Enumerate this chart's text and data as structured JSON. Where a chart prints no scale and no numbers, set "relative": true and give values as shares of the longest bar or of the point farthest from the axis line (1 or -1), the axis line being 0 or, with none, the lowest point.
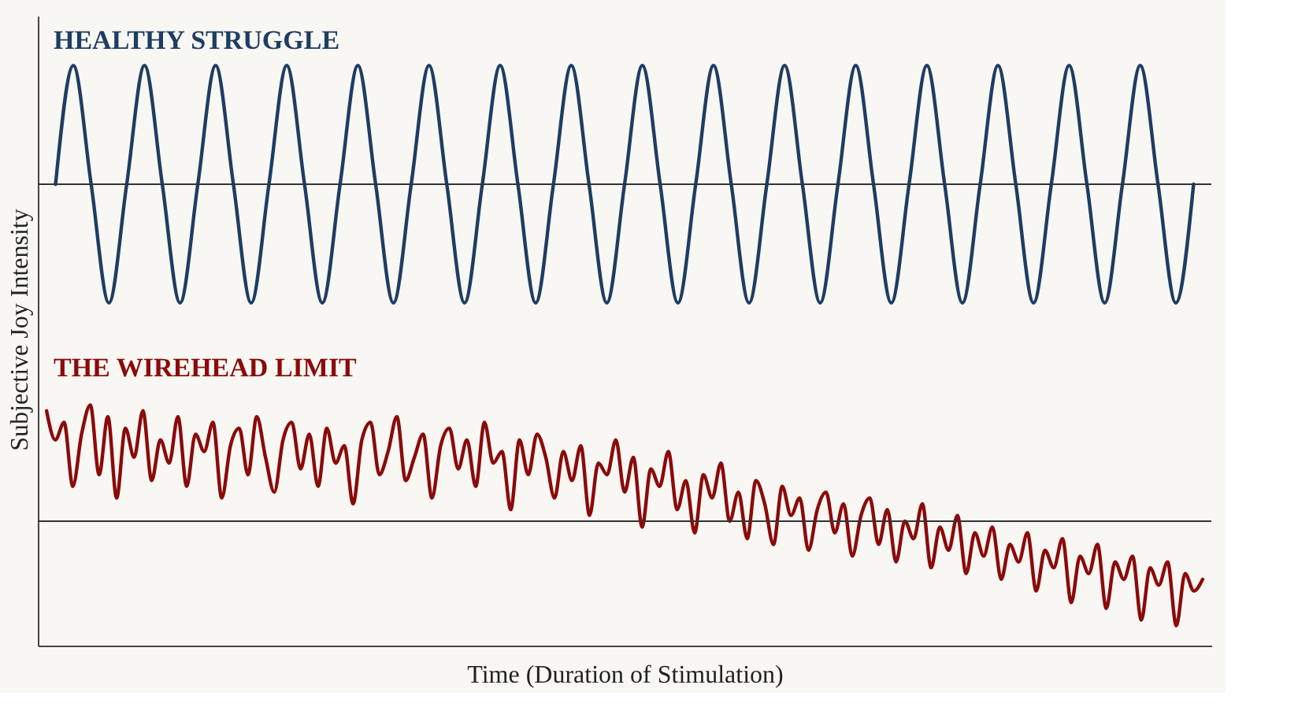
{
  "chart_data": [
    {
      "type": "line",
      "title": "HEALTHY STRUGGLE",
      "ylabel": "Subjective Joy Intensity",
      "relative": true,
      "line_style": "solid",
      "marker": "none",
      "grid": false,
      "categories": [
        null,
        null,
        null,
        null,
        null,
        null,
        null,
        null,
        null,
        null,
        null,
        null,
        null,
        null,
        null,
        null,
        null,
        null,
        null,
        null,
        null,
        null,
        null,
        null,
        null,
        null,
        null,
        null,
        null,
        null,
        null,
        null,
        null,
        null,
        null,
        null,
        null,
        null,
        null,
        null,
        null,
        null,
        null,
        null,
        null,
        null,
        null,
        null,
        null,
        null,
        null,
        null,
        null,
        null,
        null,
        null,
        null,
        null,
        null,
        null,
        null,
        null,
        null,
        null,
        null
      ],
      "series": [
        {
          "color": "#1f3d63",
          "values": [
            0,
            1,
            0,
            -1,
            0,
            1,
            0,
            -1,
            0,
            1,
            0,
            -1,
            0,
            1,
            0,
            -1,
            0,
            1,
            0,
            -1,
            0,
            1,
            0,
            -1,
            0,
            1,
            0,
            -1,
            0,
            1,
            0,
            -1,
            0,
            1,
            0,
            -1,
            0,
            1,
            0,
            -1,
            0,
            1,
            0,
            -1,
            0,
            1,
            0,
            -1,
            0,
            1,
            0,
            -1,
            0,
            1,
            0,
            -1,
            0,
            1,
            0,
            -1,
            0,
            1,
            0,
            -1,
            0
          ]
        }
      ]
    },
    {
      "type": "line",
      "title": "THE WIREHEAD LIMIT",
      "xlabel": "Time (Duration of Stimulation)",
      "relative": true,
      "line_style": "solid",
      "marker": "none",
      "grid": false,
      "categories": [
        null,
        null,
        null,
        null,
        null,
        null,
        null,
        null,
        null,
        null,
        null,
        null,
        null,
        null,
        null,
        null,
        null,
        null,
        null,
        null,
        null,
        null,
        null,
        null,
        null,
        null,
        null,
        null,
        null,
        null,
        null,
        null,
        null,
        null,
        null,
        null,
        null,
        null,
        null,
        null,
        null,
        null,
        null,
        null,
        null,
        null,
        null,
        null,
        null,
        null,
        null,
        null,
        null,
        null,
        null,
        null,
        null,
        null,
        null,
        null,
        null,
        null,
        null,
        null,
        null,
        null,
        null,
        null,
        null,
        null,
        null,
        null,
        null,
        null,
        null,
        null,
        null,
        null,
        null,
        null,
        null,
        null,
        null,
        null,
        null,
        null,
        null,
        null,
        null,
        null,
        null,
        null,
        null,
        null,
        null,
        null,
        null,
        null,
        null,
        null,
        null,
        null,
        null,
        null,
        null,
        null,
        null,
        null,
        null,
        null,
        null,
        null,
        null,
        null,
        null,
        null,
        null,
        null,
        null,
        null,
        null,
        null,
        null,
        null,
        null,
        null,
        null,
        null,
        null,
        null,
        null,
        null,
        null
      ],
      "series": [
        {
          "color": "#8b0a0a",
          "values": [
            0.95,
            0.7,
            0.85,
            0.3,
            0.75,
            1.0,
            0.4,
            0.9,
            0.2,
            0.8,
            0.55,
            0.95,
            0.35,
            0.7,
            0.5,
            0.9,
            0.3,
            0.75,
            0.6,
            0.85,
            0.2,
            0.65,
            0.8,
            0.4,
            0.9,
            0.55,
            0.25,
            0.7,
            0.85,
            0.45,
            0.75,
            0.3,
            0.8,
            0.5,
            0.65,
            0.15,
            0.7,
            0.85,
            0.4,
            0.6,
            0.9,
            0.35,
            0.55,
            0.75,
            0.2,
            0.65,
            0.8,
            0.45,
            0.7,
            0.3,
            0.85,
            0.5,
            0.6,
            0.1,
            0.7,
            0.4,
            0.75,
            0.55,
            0.2,
            0.6,
            0.35,
            0.65,
            0.05,
            0.5,
            0.4,
            0.7,
            0.25,
            0.55,
            -0.05,
            0.45,
            0.3,
            0.6,
            0.1,
            0.35,
            -0.1,
            0.4,
            0.2,
            0.5,
            0.0,
            0.25,
            -0.15,
            0.35,
            0.15,
            -0.2,
            0.3,
            0.05,
            0.2,
            -0.25,
            0.1,
            0.25,
            -0.1,
            0.15,
            -0.3,
            0.05,
            0.2,
            -0.2,
            0.1,
            -0.35,
            0.0,
            -0.15,
            0.15,
            -0.4,
            -0.05,
            -0.25,
            0.05,
            -0.45,
            -0.1,
            -0.3,
            -0.05,
            -0.5,
            -0.2,
            -0.35,
            -0.1,
            -0.6,
            -0.25,
            -0.4,
            -0.15,
            -0.7,
            -0.3,
            -0.45,
            -0.2,
            -0.75,
            -0.35,
            -0.5,
            -0.3,
            -0.85,
            -0.4,
            -0.55,
            -0.35,
            -0.9,
            -0.45,
            -0.6,
            -0.5
          ]
        }
      ]
    }
  ]
}
